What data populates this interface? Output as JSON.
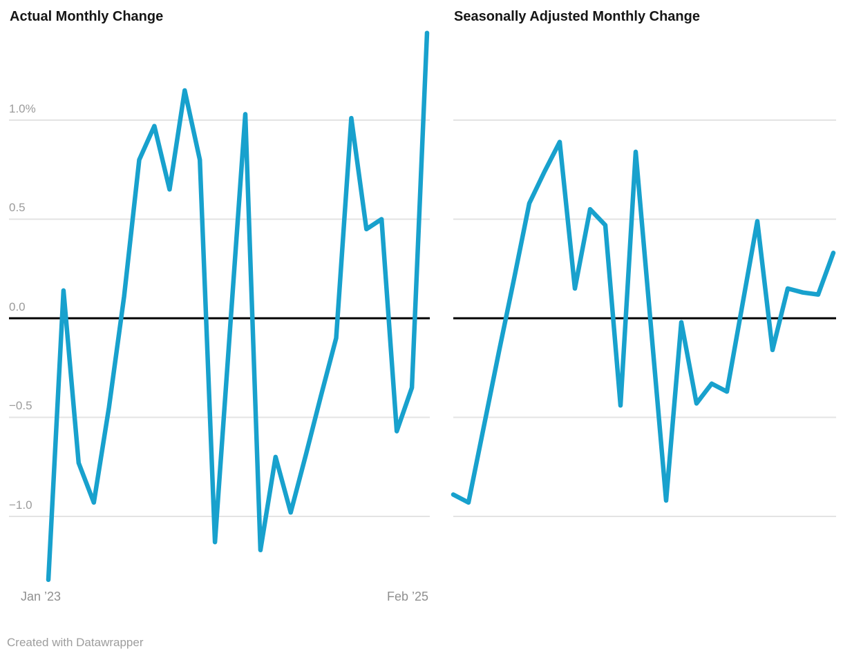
{
  "footer": {
    "credit": "Created with Datawrapper"
  },
  "colors": {
    "line": "#18a1cd",
    "grid": "#e3e3e3",
    "zero_line": "#000000",
    "tick_text": "#9b9b9b",
    "date_text": "#8f8f8f",
    "title_text": "#161616",
    "background": "#ffffff"
  },
  "chart_data": [
    {
      "type": "line",
      "title": "Actual Monthly Change",
      "x_unit": "month",
      "x_tick_labels": [
        "Jan ’23",
        "Feb ’25"
      ],
      "y_tick_labels": [
        "1.0%",
        "0.5",
        "0.0",
        "−0.5",
        "−1.0"
      ],
      "y_ticks": [
        1.0,
        0.5,
        0.0,
        -0.5,
        -1.0
      ],
      "ylim": [
        -1.4,
        1.5
      ],
      "grid": "horizontal",
      "zero_baseline": true,
      "values": [
        -1.32,
        0.14,
        -0.73,
        -0.93,
        -0.45,
        0.11,
        0.8,
        0.97,
        0.65,
        1.15,
        0.8,
        -1.13,
        -0.05,
        1.03,
        -1.17,
        -0.7,
        -0.98,
        -0.69,
        -0.39,
        -0.1,
        1.01,
        0.45,
        0.5,
        -0.57,
        -0.35,
        1.44
      ]
    },
    {
      "type": "line",
      "title": "Seasonally Adjusted Monthly Change",
      "x_unit": "month",
      "x_tick_labels": [],
      "y_tick_labels": [],
      "y_ticks": [
        1.0,
        0.5,
        0.0,
        -0.5,
        -1.0
      ],
      "ylim": [
        -1.4,
        1.5
      ],
      "grid": "horizontal",
      "zero_baseline": true,
      "values": [
        -0.89,
        -0.93,
        -0.55,
        -0.17,
        0.2,
        0.58,
        0.74,
        0.89,
        0.15,
        0.55,
        0.47,
        -0.44,
        0.84,
        -0.04,
        -0.92,
        -0.02,
        -0.43,
        -0.33,
        -0.37,
        0.06,
        0.49,
        -0.16,
        0.15,
        0.13,
        0.12,
        0.33
      ]
    }
  ]
}
